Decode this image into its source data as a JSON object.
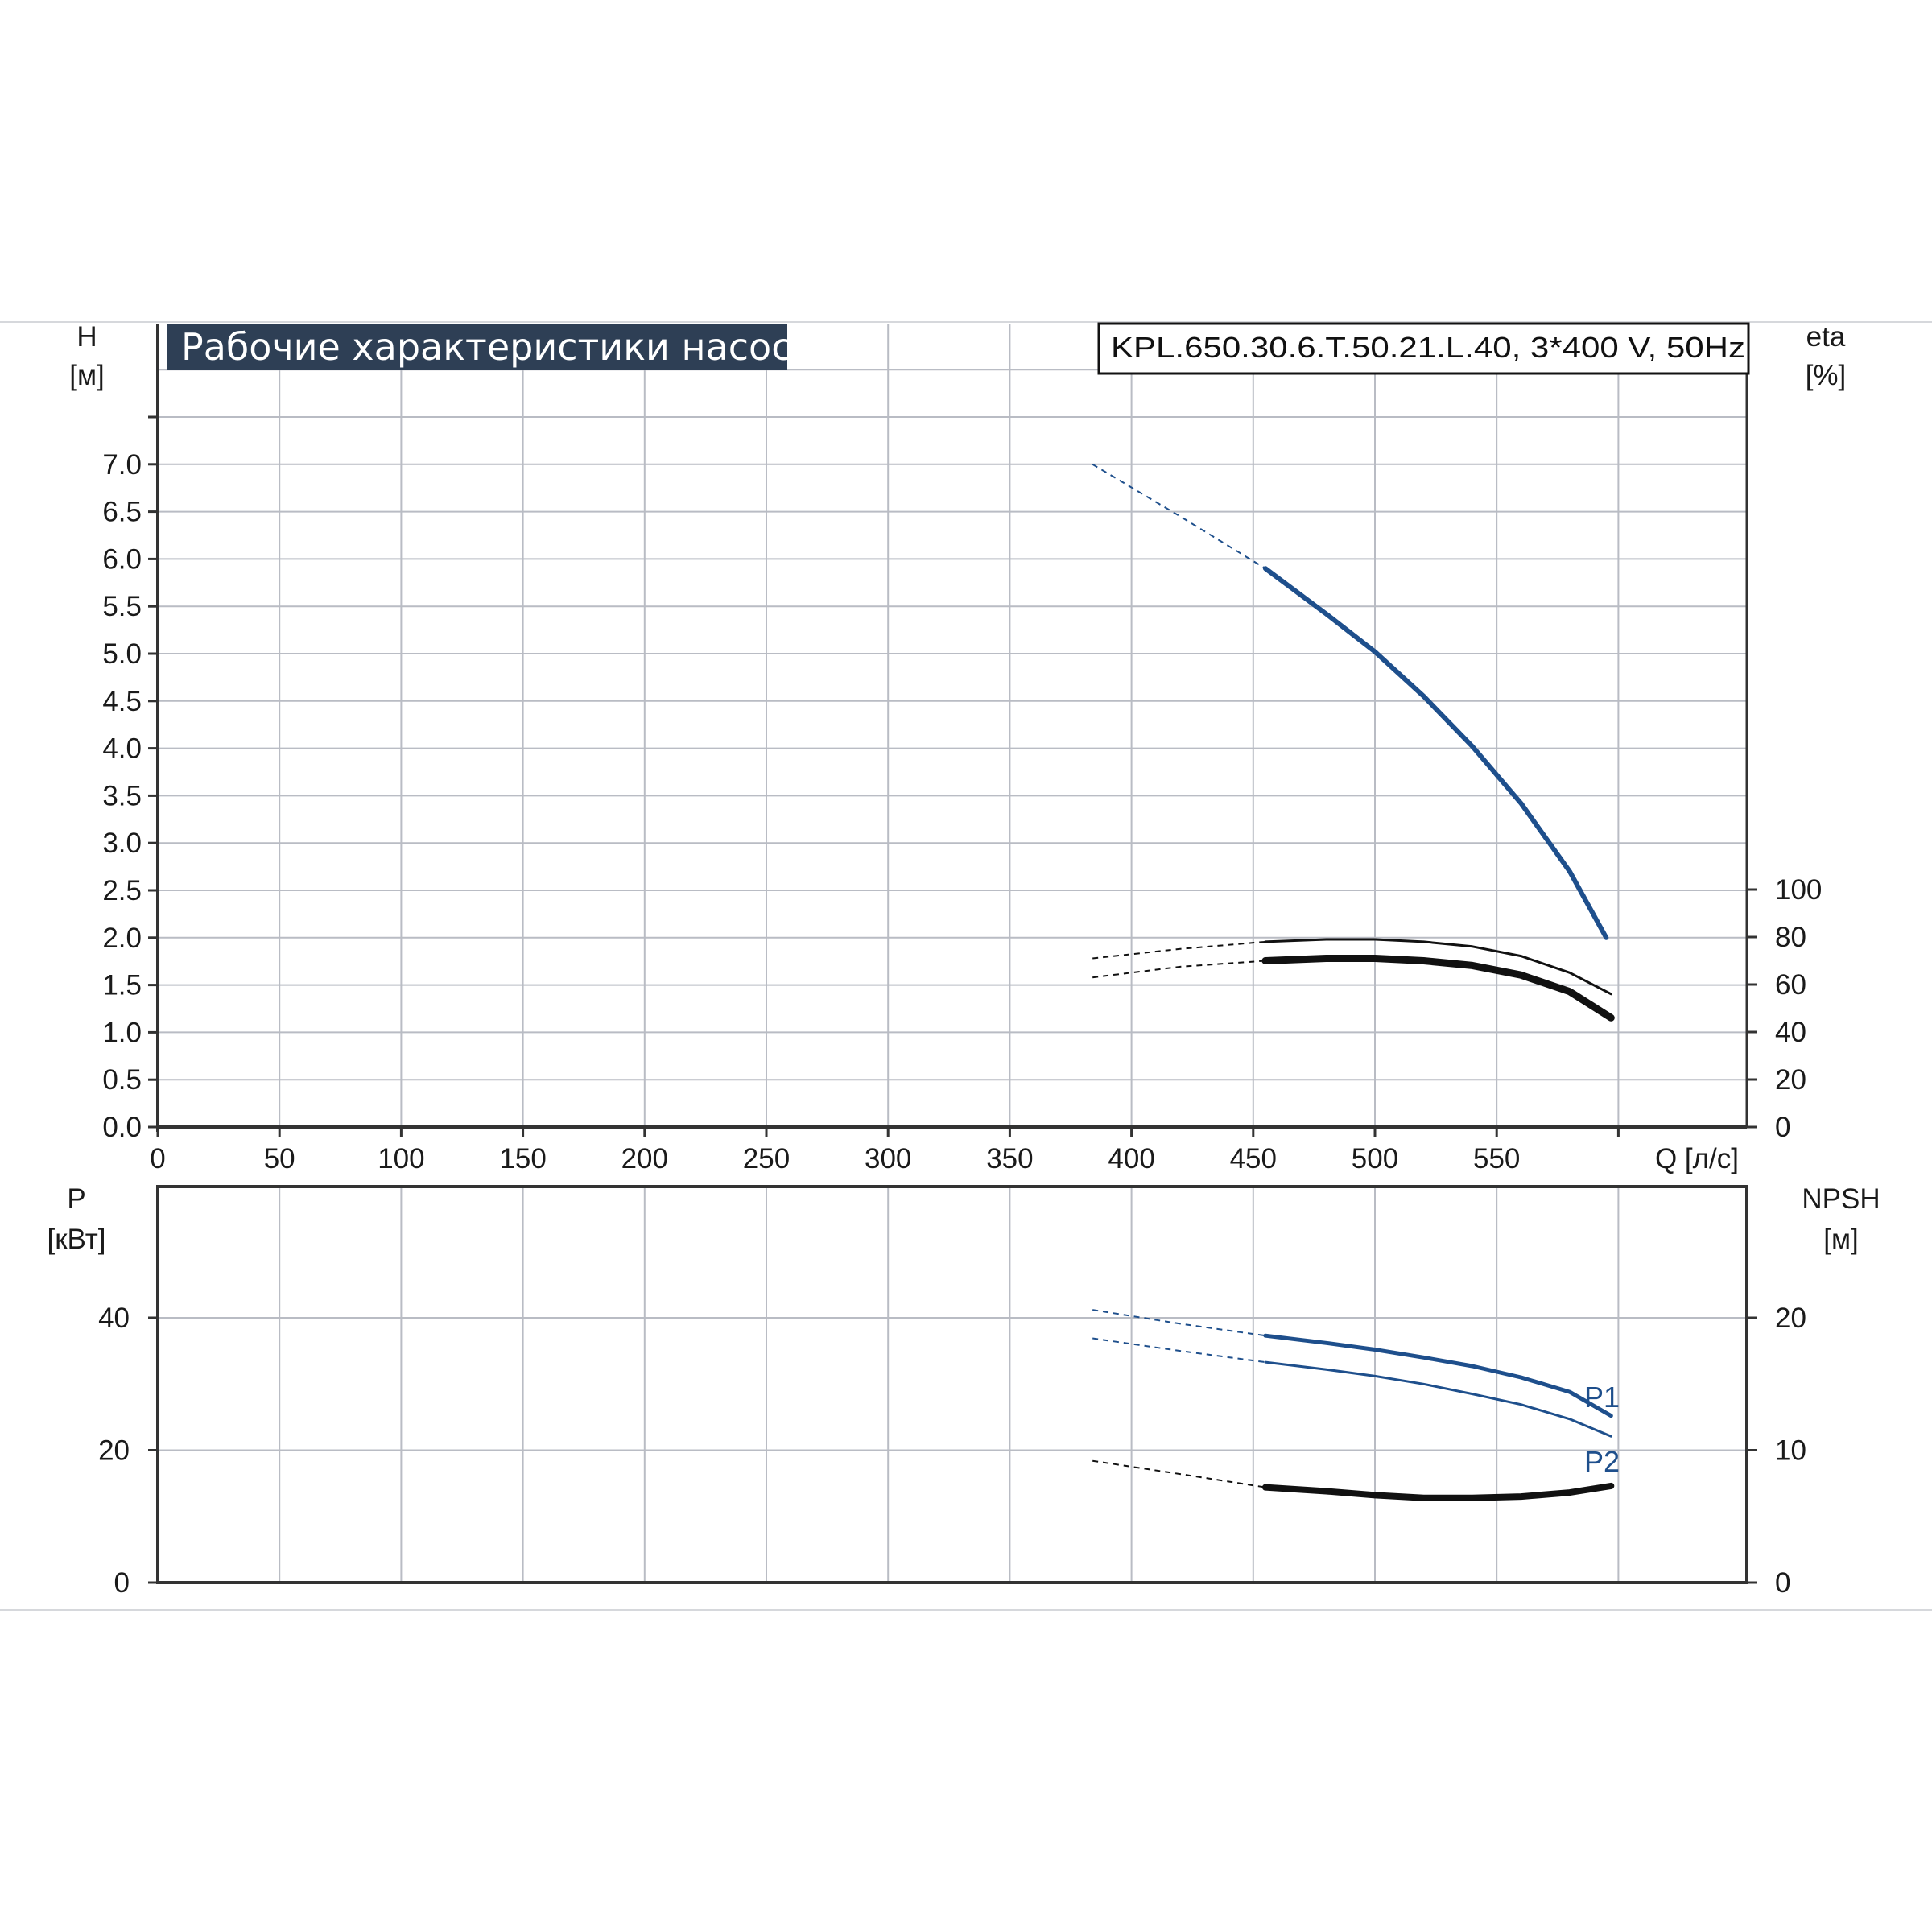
{
  "title": "Рабочие характеристики насоса",
  "model": "KPL.650.30.6.T.50.21.L.40, 3*400 V, 50Hz",
  "colors": {
    "blue": "#1e4f8c",
    "black": "#111111",
    "grid": "#b9bcc4",
    "title_bg": "#2e3f55"
  },
  "chart_data": [
    {
      "type": "line",
      "name": "head-efficiency",
      "x_label": "Q [л/с]",
      "xlim": [
        0,
        600
      ],
      "x_ticks": [
        "0",
        "50",
        "100",
        "150",
        "200",
        "250",
        "300",
        "350",
        "400",
        "450",
        "500",
        "550"
      ],
      "y_left_label_line1": "H",
      "y_left_label_line2": "[м]",
      "y_left_ticks": [
        "0.0",
        "0.5",
        "1.0",
        "1.5",
        "2.0",
        "2.5",
        "3.0",
        "3.5",
        "4.0",
        "4.5",
        "5.0",
        "5.5",
        "6.0",
        "6.5",
        "7.0"
      ],
      "ylim_left": [
        0,
        7.5
      ],
      "y_right_label_line1": "eta",
      "y_right_label_line2": "[%]",
      "y_right_ticks": [
        "0",
        "20",
        "40",
        "60",
        "80",
        "100"
      ],
      "ylim_right": [
        0,
        100
      ],
      "grid": true,
      "series": [
        {
          "key": "H",
          "axis": "left",
          "color": "blue",
          "width": 6,
          "dashed": {
            "x": [
              384,
              420,
              455
            ],
            "y": [
              7.0,
              6.45,
              5.9
            ]
          },
          "solid": {
            "x": [
              455,
              480,
              500,
              520,
              540,
              560,
              580,
              595
            ],
            "y": [
              5.9,
              5.42,
              5.02,
              4.55,
              4.02,
              3.42,
              2.7,
              2.0
            ]
          }
        },
        {
          "key": "eta1",
          "axis": "right",
          "color": "black",
          "width": 3,
          "dashed": {
            "x": [
              384,
              420,
              455
            ],
            "y": [
              71,
              75,
              78
            ]
          },
          "solid": {
            "x": [
              455,
              480,
              500,
              520,
              540,
              560,
              580,
              597
            ],
            "y": [
              78,
              79,
              79,
              78,
              76,
              72,
              65,
              56
            ]
          }
        },
        {
          "key": "eta2",
          "axis": "right",
          "color": "black",
          "width": 9,
          "dashed": {
            "x": [
              384,
              420,
              455
            ],
            "y": [
              63,
              67.5,
              70
            ]
          },
          "solid": {
            "x": [
              455,
              480,
              500,
              520,
              540,
              560,
              580,
              597
            ],
            "y": [
              70,
              71,
              71,
              70,
              68,
              64,
              57,
              46
            ]
          }
        }
      ]
    },
    {
      "type": "line",
      "name": "power-npsh",
      "xlim": [
        0,
        600
      ],
      "y_left_label_line1": "P",
      "y_left_label_line2": "[кВт]",
      "y_left_ticks": [
        "0",
        "20",
        "40"
      ],
      "ylim_left": [
        0,
        60
      ],
      "y_right_label_line1": "NPSH",
      "y_right_label_line2": "[м]",
      "y_right_ticks": [
        "0",
        "10",
        "20"
      ],
      "ylim_right": [
        0,
        30
      ],
      "grid": true,
      "series": [
        {
          "key": "P1",
          "name": "P1",
          "axis": "left",
          "color": "blue",
          "width": 5,
          "dashed": {
            "x": [
              384,
              420,
              455
            ],
            "y": [
              41.2,
              39.1,
              37.3
            ]
          },
          "solid": {
            "x": [
              455,
              480,
              500,
              520,
              540,
              560,
              580,
              597
            ],
            "y": [
              37.3,
              36.2,
              35.2,
              34.0,
              32.7,
              31.0,
              28.8,
              25.2
            ]
          }
        },
        {
          "key": "P2",
          "name": "P2",
          "axis": "left",
          "color": "blue",
          "width": 3,
          "dashed": {
            "x": [
              384,
              420,
              455
            ],
            "y": [
              36.9,
              35.0,
              33.3
            ]
          },
          "solid": {
            "x": [
              455,
              480,
              500,
              520,
              540,
              560,
              580,
              597
            ],
            "y": [
              33.3,
              32.2,
              31.2,
              30.0,
              28.5,
              26.9,
              24.7,
              22.1
            ]
          }
        },
        {
          "key": "NPSH",
          "axis": "right",
          "color": "black",
          "width": 8,
          "dashed": {
            "x": [
              384,
              420,
              455
            ],
            "y": [
              9.2,
              8.2,
              7.2
            ]
          },
          "solid": {
            "x": [
              455,
              480,
              500,
              520,
              540,
              560,
              580,
              597
            ],
            "y": [
              7.2,
              6.9,
              6.6,
              6.4,
              6.4,
              6.5,
              6.8,
              7.3
            ]
          }
        }
      ]
    }
  ]
}
